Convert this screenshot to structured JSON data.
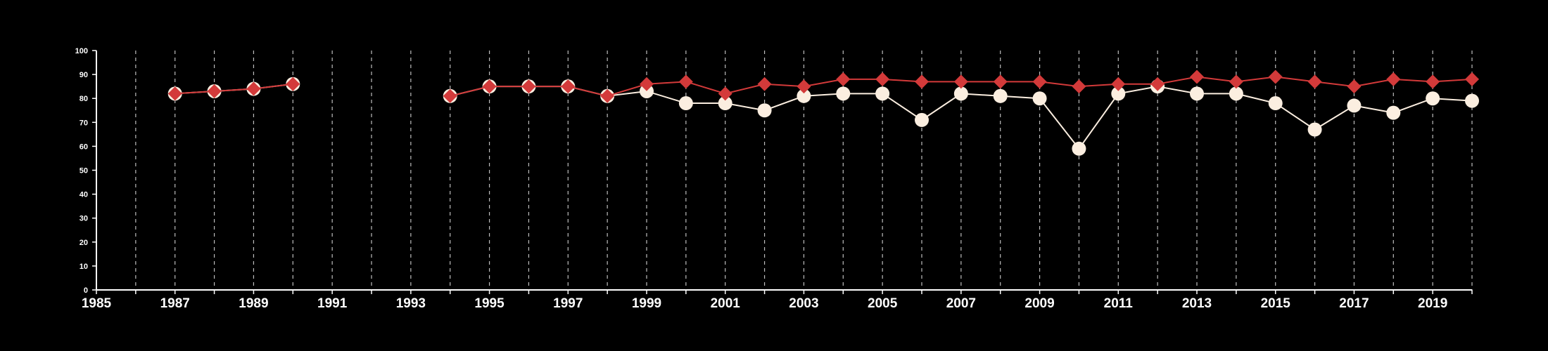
{
  "colors": {
    "background": "#000000",
    "axis": "#ffffff",
    "grid": "#bdbdbd",
    "series_white": "#fbeee0",
    "series_red": "#d33a3a"
  },
  "chart_data": {
    "type": "line",
    "title": "",
    "xlabel": "",
    "ylabel": "",
    "xlim": [
      1985,
      2020
    ],
    "ylim": [
      0,
      100
    ],
    "xticks_labeled": [
      1985,
      1987,
      1989,
      1991,
      1993,
      1995,
      1997,
      1999,
      2001,
      2003,
      2005,
      2007,
      2009,
      2011,
      2013,
      2015,
      2017,
      2019
    ],
    "xticks_all": [
      1985,
      1986,
      1987,
      1988,
      1989,
      1990,
      1991,
      1992,
      1993,
      1994,
      1995,
      1996,
      1997,
      1998,
      1999,
      2000,
      2001,
      2002,
      2003,
      2004,
      2005,
      2006,
      2007,
      2008,
      2009,
      2010,
      2011,
      2012,
      2013,
      2014,
      2015,
      2016,
      2017,
      2018,
      2019,
      2020
    ],
    "yticks": [
      0,
      10,
      20,
      30,
      40,
      50,
      60,
      70,
      80,
      90,
      100
    ],
    "grid": "vertical-dashed",
    "legend": "none",
    "series": [
      {
        "marker": "circle",
        "color": "#fbeee0",
        "segments": [
          [
            [
              1987,
              82
            ],
            [
              1988,
              83
            ],
            [
              1989,
              84
            ],
            [
              1990,
              86
            ]
          ],
          [
            [
              1994,
              81
            ],
            [
              1995,
              85
            ],
            [
              1996,
              85
            ],
            [
              1997,
              85
            ],
            [
              1998,
              81
            ],
            [
              1999,
              83
            ],
            [
              2000,
              78
            ],
            [
              2001,
              78
            ],
            [
              2002,
              75
            ],
            [
              2003,
              81
            ],
            [
              2004,
              82
            ],
            [
              2005,
              82
            ],
            [
              2006,
              71
            ],
            [
              2007,
              82
            ],
            [
              2008,
              81
            ],
            [
              2009,
              80
            ],
            [
              2010,
              59
            ],
            [
              2011,
              82
            ],
            [
              2012,
              85
            ],
            [
              2013,
              82
            ],
            [
              2014,
              82
            ],
            [
              2015,
              78
            ],
            [
              2016,
              67
            ],
            [
              2017,
              77
            ],
            [
              2018,
              74
            ],
            [
              2019,
              80
            ],
            [
              2020,
              79
            ]
          ]
        ]
      },
      {
        "marker": "diamond",
        "color": "#d33a3a",
        "segments": [
          [
            [
              1987,
              82
            ],
            [
              1988,
              83
            ],
            [
              1989,
              84
            ],
            [
              1990,
              86
            ]
          ],
          [
            [
              1994,
              81
            ],
            [
              1995,
              85
            ],
            [
              1996,
              85
            ],
            [
              1997,
              85
            ],
            [
              1998,
              81
            ],
            [
              1999,
              86
            ],
            [
              2000,
              87
            ],
            [
              2001,
              82
            ],
            [
              2002,
              86
            ],
            [
              2003,
              85
            ],
            [
              2004,
              88
            ],
            [
              2005,
              88
            ],
            [
              2006,
              87
            ],
            [
              2007,
              87
            ],
            [
              2008,
              87
            ],
            [
              2009,
              87
            ],
            [
              2010,
              85
            ],
            [
              2011,
              86
            ],
            [
              2012,
              86
            ],
            [
              2013,
              89
            ],
            [
              2014,
              87
            ],
            [
              2015,
              89
            ],
            [
              2016,
              87
            ],
            [
              2017,
              85
            ],
            [
              2018,
              88
            ],
            [
              2019,
              87
            ],
            [
              2020,
              88
            ]
          ]
        ]
      }
    ]
  }
}
